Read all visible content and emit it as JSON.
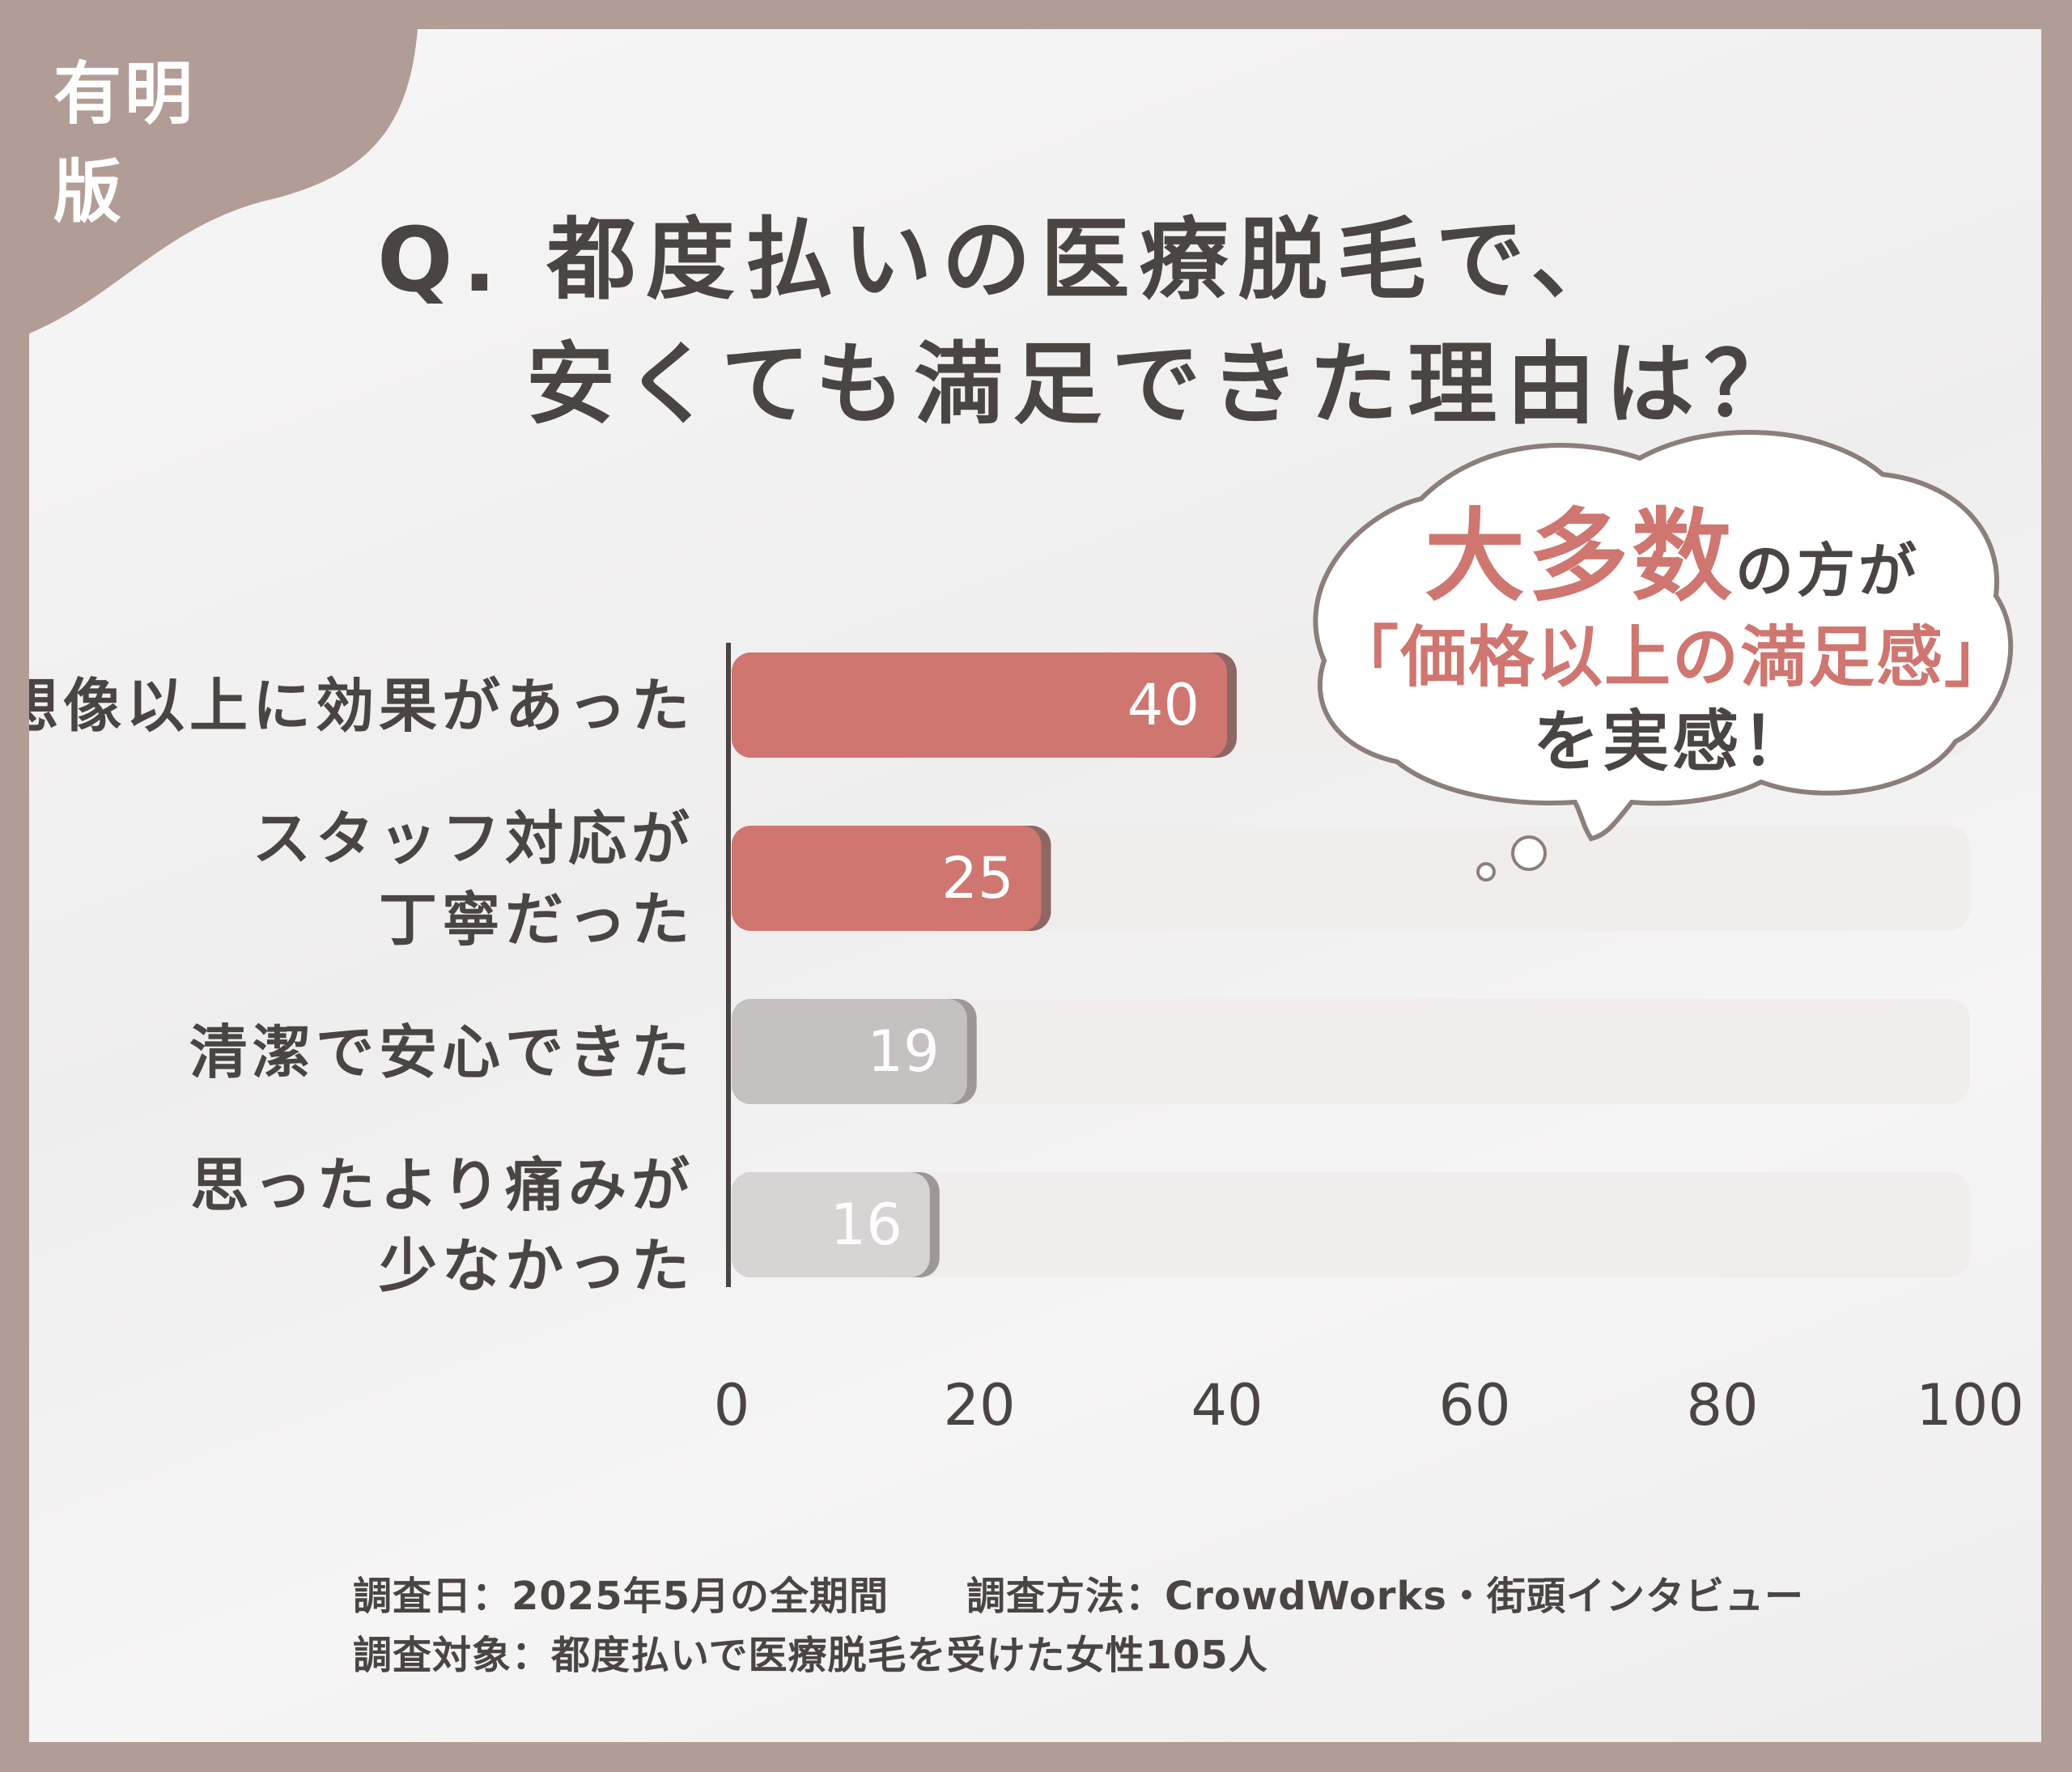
{
  "edition_badge": "有明版",
  "title": {
    "line1": "Q. 都度払いの医療脱毛で、",
    "line2": "安くても満足できた理由は？"
  },
  "callout": {
    "highlight": "大多数",
    "line1_rest": "の方が",
    "line2": "「価格以上の満足感」",
    "line3": "を実感！"
  },
  "colors": {
    "frame": "#b29d96",
    "accent_bar": "#cf7670",
    "accent_bar_shadow": "#8e6764",
    "grey_bar": "#c5c1c0",
    "light_grey_bar": "#d7d4d3",
    "grey_bar_shadow": "#9d9897",
    "track": "#f1eded",
    "text": "#4a4543"
  },
  "chart_data": {
    "type": "bar",
    "orientation": "horizontal",
    "categories": [
      [
        "想像以上に効果があった"
      ],
      [
        "スタッフ対応が",
        "丁寧だった"
      ],
      [
        "清潔で安心できた"
      ],
      [
        "思ったより痛みが",
        "少なかった"
      ]
    ],
    "values": [
      40,
      25,
      19,
      16
    ],
    "value_labels": [
      "40",
      "25",
      "19",
      "16"
    ],
    "bar_styles": [
      "accent",
      "accent",
      "grey",
      "light-grey"
    ],
    "xlim": [
      0,
      100
    ],
    "xticks": [
      0,
      20,
      40,
      60,
      80,
      100
    ],
    "xtick_labels": [
      "0",
      "20",
      "40",
      "60",
      "80",
      "100"
    ],
    "title": "Q. 都度払いの医療脱毛で、安くても満足できた理由は？",
    "xlabel": "",
    "ylabel": "",
    "grid": false,
    "legend": "none"
  },
  "footnotes": {
    "survey_date": "調査日：2025年5月の全期間",
    "survey_method": "調査方法：CrowdWorks・街頭インタビュー",
    "survey_target": "調査対象：都度払いで医療脱毛を受けた女性105人"
  }
}
